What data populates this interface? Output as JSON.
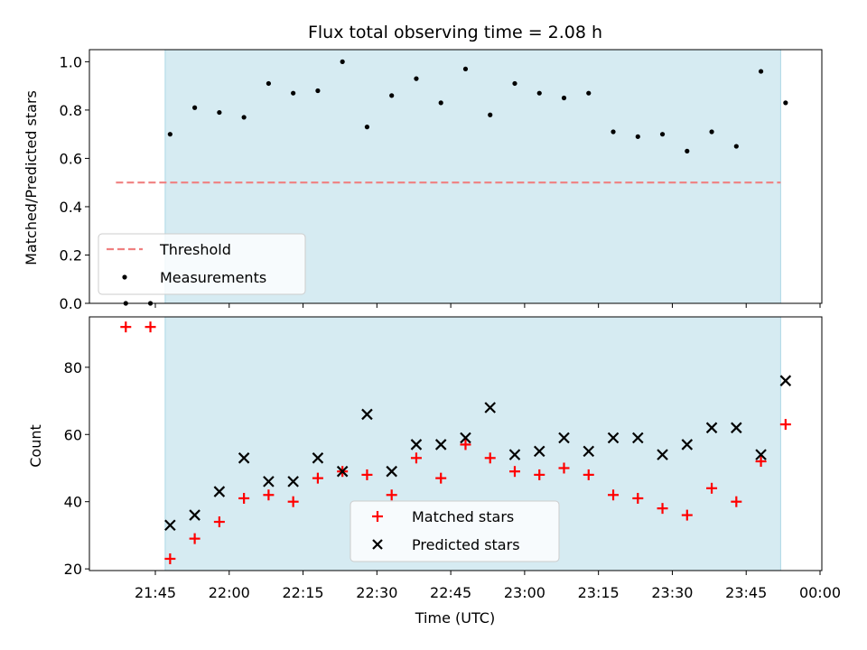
{
  "chart_data": [
    {
      "type": "scatter",
      "title": "Flux total observing time = 2.08 h",
      "xlabel": "",
      "ylabel": "Matched/Predicted stars",
      "ylim": [
        0,
        1.05
      ],
      "yticks": [
        "0.0",
        "0.2",
        "0.4",
        "0.6",
        "0.8",
        "1.0"
      ],
      "shaded_region": {
        "x_start": "21:47",
        "x_end": "23:52",
        "color": "#add8e6"
      },
      "threshold": {
        "name": "Threshold",
        "value": 0.5,
        "x_start": "21:37",
        "x_end": "23:52",
        "color": "#f08080",
        "style": "dashed"
      },
      "series": [
        {
          "name": "Measurements",
          "color": "#000000",
          "marker": "dot",
          "x": [
            "21:39",
            "21:44",
            "21:48",
            "21:53",
            "21:58",
            "22:03",
            "22:08",
            "22:13",
            "22:18",
            "22:23",
            "22:28",
            "22:33",
            "22:38",
            "22:43",
            "22:48",
            "22:53",
            "22:58",
            "23:03",
            "23:08",
            "23:13",
            "23:18",
            "23:23",
            "23:28",
            "23:33",
            "23:38",
            "23:43",
            "23:48",
            "23:53"
          ],
          "values": [
            0.0,
            0.0,
            0.7,
            0.81,
            0.79,
            0.77,
            0.91,
            0.87,
            0.88,
            1.0,
            0.73,
            0.86,
            0.93,
            0.83,
            0.97,
            0.78,
            0.91,
            0.87,
            0.85,
            0.87,
            0.71,
            0.69,
            0.7,
            0.63,
            0.71,
            0.65,
            0.96,
            0.83
          ]
        }
      ],
      "legend": {
        "position": "lower-left",
        "entries": [
          "Threshold",
          "Measurements"
        ]
      }
    },
    {
      "type": "scatter",
      "title": "",
      "xlabel": "Time (UTC)",
      "ylabel": "Count",
      "ylim": [
        19.5,
        95
      ],
      "yticks": [
        "20",
        "40",
        "60",
        "80"
      ],
      "xticks": [
        "21:45",
        "22:00",
        "22:15",
        "22:30",
        "22:45",
        "23:00",
        "23:15",
        "23:30",
        "23:45",
        "00:00"
      ],
      "shaded_region": {
        "x_start": "21:47",
        "x_end": "23:52",
        "color": "#add8e6"
      },
      "series": [
        {
          "name": "Matched stars",
          "color": "#ff0000",
          "marker": "plus",
          "x": [
            "21:39",
            "21:44",
            "21:48",
            "21:53",
            "21:58",
            "22:03",
            "22:08",
            "22:13",
            "22:18",
            "22:23",
            "22:28",
            "22:33",
            "22:38",
            "22:43",
            "22:48",
            "22:53",
            "22:58",
            "23:03",
            "23:08",
            "23:13",
            "23:18",
            "23:23",
            "23:28",
            "23:33",
            "23:38",
            "23:43",
            "23:48",
            "23:53"
          ],
          "values": [
            92,
            92,
            23,
            29,
            34,
            41,
            42,
            40,
            47,
            49,
            48,
            42,
            53,
            47,
            57,
            53,
            49,
            48,
            50,
            48,
            42,
            41,
            38,
            36,
            44,
            40,
            52,
            63
          ]
        },
        {
          "name": "Predicted stars",
          "color": "#000000",
          "marker": "x",
          "x": [
            "21:48",
            "21:53",
            "21:58",
            "22:03",
            "22:08",
            "22:13",
            "22:18",
            "22:23",
            "22:28",
            "22:33",
            "22:38",
            "22:43",
            "22:48",
            "22:53",
            "22:58",
            "23:03",
            "23:08",
            "23:13",
            "23:18",
            "23:23",
            "23:28",
            "23:33",
            "23:38",
            "23:43",
            "23:48",
            "23:53"
          ],
          "values": [
            33,
            36,
            43,
            53,
            46,
            46,
            53,
            49,
            66,
            49,
            57,
            57,
            59,
            68,
            54,
            55,
            59,
            55,
            59,
            59,
            54,
            57,
            62,
            62,
            54,
            76
          ]
        }
      ],
      "legend": {
        "position": "lower-center",
        "entries": [
          "Matched stars",
          "Predicted stars"
        ]
      }
    }
  ]
}
